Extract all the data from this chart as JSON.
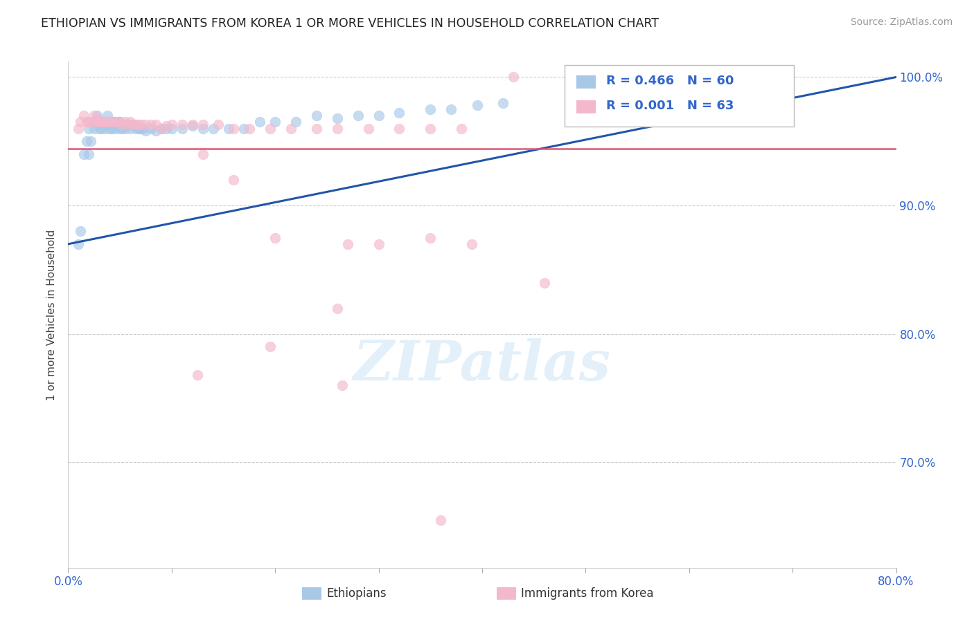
{
  "title": "ETHIOPIAN VS IMMIGRANTS FROM KOREA 1 OR MORE VEHICLES IN HOUSEHOLD CORRELATION CHART",
  "source": "Source: ZipAtlas.com",
  "ylabel": "1 or more Vehicles in Household",
  "xmin": 0.0,
  "xmax": 0.8,
  "ymin": 0.618,
  "ymax": 1.012,
  "xticks": [
    0.0,
    0.1,
    0.2,
    0.3,
    0.4,
    0.5,
    0.6,
    0.7,
    0.8
  ],
  "yticks": [
    0.7,
    0.8,
    0.9,
    1.0
  ],
  "ytick_labels": [
    "70.0%",
    "80.0%",
    "90.0%",
    "100.0%"
  ],
  "legend_R1": "R = 0.466",
  "legend_N1": "N = 60",
  "legend_R2": "R = 0.001",
  "legend_N2": "N = 63",
  "legend_label1": "Ethiopians",
  "legend_label2": "Immigrants from Korea",
  "color_blue": "#a8c8e8",
  "color_pink": "#f4b8cc",
  "trend_blue": "#2255aa",
  "trend_pink": "#e05575",
  "watermark": "ZIPatlas",
  "blue_x": [
    0.01,
    0.012,
    0.015,
    0.018,
    0.02,
    0.02,
    0.022,
    0.025,
    0.025,
    0.028,
    0.03,
    0.03,
    0.032,
    0.033,
    0.035,
    0.035,
    0.038,
    0.038,
    0.04,
    0.04,
    0.042,
    0.043,
    0.045,
    0.045,
    0.048,
    0.05,
    0.05,
    0.052,
    0.055,
    0.058,
    0.06,
    0.062,
    0.065,
    0.068,
    0.07,
    0.072,
    0.075,
    0.08,
    0.085,
    0.09,
    0.095,
    0.1,
    0.11,
    0.12,
    0.13,
    0.14,
    0.155,
    0.17,
    0.185,
    0.2,
    0.22,
    0.24,
    0.26,
    0.28,
    0.3,
    0.32,
    0.35,
    0.37,
    0.395,
    0.42
  ],
  "blue_y": [
    0.87,
    0.88,
    0.94,
    0.95,
    0.94,
    0.96,
    0.95,
    0.96,
    0.965,
    0.97,
    0.96,
    0.965,
    0.96,
    0.965,
    0.96,
    0.965,
    0.965,
    0.97,
    0.96,
    0.965,
    0.96,
    0.965,
    0.96,
    0.965,
    0.965,
    0.96,
    0.965,
    0.96,
    0.96,
    0.963,
    0.96,
    0.963,
    0.96,
    0.96,
    0.96,
    0.96,
    0.958,
    0.96,
    0.958,
    0.96,
    0.96,
    0.96,
    0.96,
    0.962,
    0.96,
    0.96,
    0.96,
    0.96,
    0.965,
    0.965,
    0.965,
    0.97,
    0.968,
    0.97,
    0.97,
    0.972,
    0.975,
    0.975,
    0.978,
    0.98
  ],
  "pink_x": [
    0.01,
    0.012,
    0.015,
    0.018,
    0.02,
    0.022,
    0.025,
    0.025,
    0.028,
    0.03,
    0.03,
    0.032,
    0.033,
    0.035,
    0.038,
    0.04,
    0.04,
    0.042,
    0.045,
    0.048,
    0.05,
    0.052,
    0.055,
    0.058,
    0.06,
    0.062,
    0.065,
    0.068,
    0.07,
    0.075,
    0.08,
    0.085,
    0.09,
    0.095,
    0.1,
    0.11,
    0.12,
    0.13,
    0.145,
    0.16,
    0.175,
    0.195,
    0.215,
    0.24,
    0.26,
    0.29,
    0.32,
    0.35,
    0.38,
    0.43,
    0.16,
    0.2,
    0.3,
    0.13,
    0.27,
    0.35,
    0.39,
    0.46,
    0.195,
    0.26,
    0.125,
    0.265,
    0.36
  ],
  "pink_y": [
    0.96,
    0.965,
    0.97,
    0.965,
    0.965,
    0.965,
    0.97,
    0.965,
    0.968,
    0.965,
    0.965,
    0.965,
    0.965,
    0.965,
    0.965,
    0.965,
    0.965,
    0.965,
    0.965,
    0.965,
    0.965,
    0.963,
    0.965,
    0.963,
    0.965,
    0.963,
    0.963,
    0.963,
    0.963,
    0.963,
    0.963,
    0.963,
    0.96,
    0.962,
    0.963,
    0.963,
    0.963,
    0.963,
    0.963,
    0.96,
    0.96,
    0.96,
    0.96,
    0.96,
    0.96,
    0.96,
    0.96,
    0.96,
    0.96,
    1.0,
    0.92,
    0.875,
    0.87,
    0.94,
    0.87,
    0.875,
    0.87,
    0.84,
    0.79,
    0.82,
    0.768,
    0.76,
    0.655
  ],
  "blue_trend_x0": 0.0,
  "blue_trend_y0": 0.87,
  "blue_trend_x1": 0.8,
  "blue_trend_y1": 1.0,
  "pink_trend_x0": 0.0,
  "pink_trend_y0": 0.944,
  "pink_trend_x1": 0.8,
  "pink_trend_y1": 0.944
}
